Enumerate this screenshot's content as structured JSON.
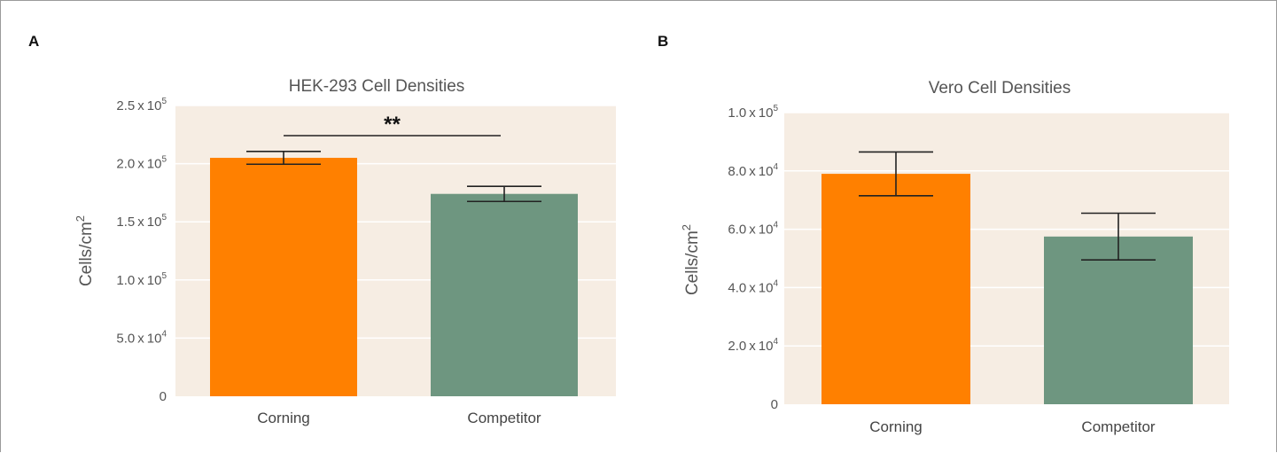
{
  "colors": {
    "plot_bg": "#f6ede3",
    "grid": "#ffffff",
    "corning": "#ff8000",
    "competitor": "#6e9680",
    "error": "#222222"
  },
  "chart_data": [
    {
      "type": "bar",
      "panel": "A",
      "title": "HEK-293 Cell Densities",
      "ylabel_base": "Cells/cm",
      "ylabel_sup": "2",
      "categories": [
        "Corning",
        "Competitor"
      ],
      "values": [
        205000,
        174000
      ],
      "errors": [
        5500,
        6500
      ],
      "ylim": [
        0,
        250000
      ],
      "yticks": [
        {
          "value": 0,
          "mant": "0",
          "exp": ""
        },
        {
          "value": 50000,
          "mant": "5.0 x 10",
          "exp": "4"
        },
        {
          "value": 100000,
          "mant": "1.0 x 10",
          "exp": "5"
        },
        {
          "value": 150000,
          "mant": "1.5 x 10",
          "exp": "5"
        },
        {
          "value": 200000,
          "mant": "2.0 x 10",
          "exp": "5"
        },
        {
          "value": 250000,
          "mant": "2.5 x 10",
          "exp": "5"
        }
      ],
      "significance": "**"
    },
    {
      "type": "bar",
      "panel": "B",
      "title": "Vero Cell  Densities",
      "ylabel_base": "Cells/cm",
      "ylabel_sup": "2",
      "categories": [
        "Corning",
        "Competitor"
      ],
      "values": [
        79000,
        57500
      ],
      "errors": [
        7500,
        8000
      ],
      "ylim": [
        0,
        100000
      ],
      "yticks": [
        {
          "value": 0,
          "mant": "0",
          "exp": ""
        },
        {
          "value": 20000,
          "mant": "2.0 x 10",
          "exp": "4"
        },
        {
          "value": 40000,
          "mant": "4.0 x 10",
          "exp": "4"
        },
        {
          "value": 60000,
          "mant": "6.0 x 10",
          "exp": "4"
        },
        {
          "value": 80000,
          "mant": "8.0 x 10",
          "exp": "4"
        },
        {
          "value": 100000,
          "mant": "1.0 x 10",
          "exp": "5"
        }
      ],
      "significance": ""
    }
  ]
}
